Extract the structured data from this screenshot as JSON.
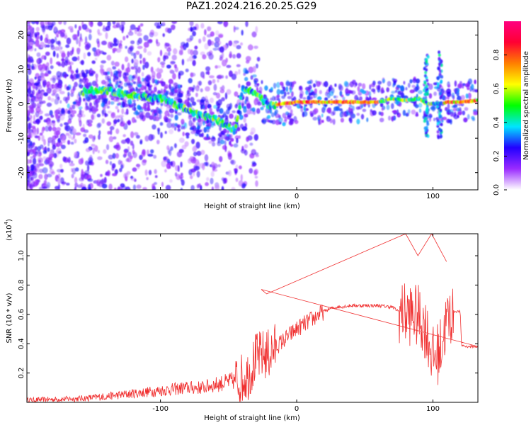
{
  "title": "PAZ1.2024.216.20.25.G29",
  "chart_data": [
    {
      "type": "heatmap",
      "xlabel": "Height of straight line (km)",
      "ylabel": "Frequency (Hz)",
      "xlim": [
        -198,
        133
      ],
      "ylim": [
        -25,
        24
      ],
      "xticks": [
        -100,
        0,
        100
      ],
      "yticks": [
        -20,
        -10,
        0,
        10,
        20
      ],
      "xtick_labels": [
        "-100",
        "0",
        "100"
      ],
      "ytick_labels": [
        "-20",
        "-10",
        "0",
        "10",
        "20"
      ],
      "colorbar": {
        "label": "Normalized spectral amplitude",
        "range": [
          0,
          1
        ],
        "ticks": [
          "0.0",
          "0.2",
          "0.4",
          "0.6",
          "0.8"
        ],
        "colormap": [
          "#ffffff",
          "#9a2bff",
          "#2200ff",
          "#00e5ff",
          "#00ff00",
          "#ffff00",
          "#ff7f00",
          "#ff0033",
          "#ff0080"
        ]
      },
      "ridge_frequency_hz": {
        "x": [
          -160,
          -140,
          -120,
          -100,
          -90,
          -80,
          -70,
          -60,
          -50,
          -45,
          -40,
          -35,
          -30,
          -25,
          -20,
          -10,
          0,
          20,
          40,
          60,
          70,
          80,
          90,
          95,
          105,
          110,
          120,
          133
        ],
        "y": [
          3.5,
          4.0,
          2.5,
          1.5,
          0,
          -2.0,
          -3.5,
          -4.5,
          -6.5,
          -8.0,
          4.0,
          4.0,
          3.0,
          1.0,
          -0.5,
          0,
          0.5,
          0.5,
          0.5,
          0.5,
          1.5,
          1.0,
          1.5,
          0,
          0,
          0.5,
          0.5,
          1.0
        ]
      }
    },
    {
      "type": "line",
      "xlabel": "Height of straight line (km)",
      "ylabel": "SNR (10 * v/v)",
      "yscale_label": "(x10",
      "yscale_exp": "4",
      "xlim": [
        -198,
        133
      ],
      "ylim": [
        0,
        1.15
      ],
      "xticks": [
        -100,
        0,
        100
      ],
      "yticks": [
        0.2,
        0.4,
        0.6,
        0.8,
        1.0
      ],
      "xtick_labels": [
        "-100",
        "0",
        "100"
      ],
      "ytick_labels": [
        "0.2",
        "0.4",
        "0.6",
        "0.8",
        "1.0"
      ],
      "color": "#f03030",
      "series": [
        {
          "x": [
            -198,
            -180,
            -160,
            -140,
            -130,
            -120,
            -110,
            -100,
            -90,
            -80,
            -70,
            -60,
            -50,
            -40,
            -35,
            -30,
            -25,
            -20,
            -15,
            -10,
            -5,
            0,
            5,
            10,
            15,
            20,
            25,
            30,
            40,
            50,
            60,
            70,
            75,
            80,
            85,
            90,
            95,
            100,
            105,
            110,
            115,
            120,
            121,
            125,
            133
          ],
          "y": [
            0.015,
            0.02,
            0.025,
            0.04,
            0.05,
            0.06,
            0.07,
            0.08,
            0.09,
            0.1,
            0.1,
            0.12,
            0.14,
            0.16,
            0.2,
            0.3,
            0.32,
            0.33,
            0.38,
            0.42,
            0.46,
            0.5,
            0.53,
            0.56,
            0.59,
            0.62,
            0.64,
            0.65,
            0.66,
            0.66,
            0.66,
            0.65,
            0.62,
            0.6,
            0.6,
            0.58,
            0.5,
            0.3,
            0.35,
            0.55,
            0.62,
            0.62,
            0.39,
            0.38,
            0.38
          ]
        }
      ],
      "spikes": [
        {
          "x": -26,
          "y": 0.77
        },
        {
          "x": -22,
          "y": 0.74
        },
        {
          "x": 80,
          "y": 1.15
        },
        {
          "x": 89,
          "y": 1.0
        },
        {
          "x": 99,
          "y": 1.15
        },
        {
          "x": 110,
          "y": 0.96
        }
      ]
    }
  ]
}
